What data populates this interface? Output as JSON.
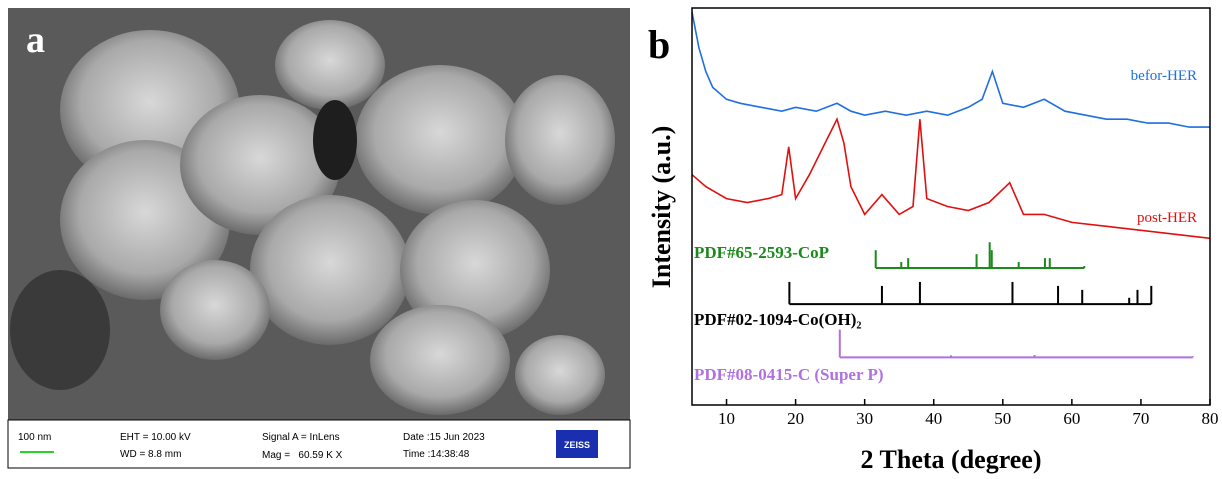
{
  "panel_a": {
    "label": "a",
    "scale_bar": "100 nm",
    "eht": "EHT = 10.00 kV",
    "wd": "WD = 8.8 mm",
    "signal": "Signal A = InLens",
    "mag": "Mag =   60.59 K X",
    "date": "Date :15 Jun 2023",
    "time": "Time :14:38:48",
    "logo": "ZEISS"
  },
  "chart_data": {
    "type": "xrd",
    "label": "b",
    "xlabel": "2 Theta (degree)",
    "ylabel": "Intensity (a.u.)",
    "xlim": [
      5,
      80
    ],
    "xticks": [
      10,
      20,
      30,
      40,
      50,
      60,
      70,
      80
    ],
    "ylim": [
      0,
      100
    ],
    "series": [
      {
        "name": "befor-HER",
        "color": "#1f6fe0",
        "kind": "line",
        "x": [
          5,
          6,
          7,
          8,
          10,
          12,
          15,
          18,
          20,
          23,
          26,
          28,
          30,
          33,
          36,
          39,
          42,
          45,
          47,
          48.5,
          50,
          53,
          56,
          59,
          62,
          65,
          68,
          71,
          74,
          77,
          80
        ],
        "values": [
          99,
          90,
          84,
          80,
          77,
          76,
          75,
          74,
          75,
          74,
          76,
          74,
          73,
          74,
          73,
          74,
          73,
          75,
          77,
          84,
          76,
          75,
          77,
          74,
          73,
          72,
          72,
          71,
          71,
          70,
          70
        ]
      },
      {
        "name": "post-HER",
        "color": "#e01010",
        "kind": "line",
        "x": [
          5,
          7,
          10,
          13,
          16,
          18,
          19,
          20,
          22,
          24,
          26,
          27,
          28,
          30,
          32.5,
          35,
          37,
          38,
          39,
          42,
          45,
          48,
          51,
          53,
          56,
          60,
          65,
          70,
          75,
          80
        ],
        "values": [
          58,
          55,
          52,
          51,
          52,
          53,
          65,
          52,
          58,
          65,
          72,
          66,
          55,
          48,
          53,
          48,
          50,
          72,
          52,
          50,
          49,
          51,
          56,
          48,
          48,
          46,
          45,
          44,
          43,
          42
        ]
      },
      {
        "name": "PDF#65-2593-CoP",
        "color": "#1a8a1a",
        "kind": "stick",
        "baseline": 34.5,
        "x": [
          31.6,
          35.3,
          36.3,
          46.2,
          48.1,
          48.4,
          52.3,
          56.1,
          56.8,
          61.8
        ],
        "values": [
          39,
          36,
          37,
          38,
          41,
          39,
          36,
          37,
          37,
          35
        ]
      },
      {
        "name": "PDF#02-1094-Co(OH)₂",
        "color": "#000000",
        "kind": "stick",
        "baseline": 25.4,
        "x": [
          19.1,
          32.5,
          38.0,
          51.4,
          58.0,
          61.5,
          68.3,
          69.5,
          71.5
        ],
        "values": [
          31,
          30,
          31,
          31,
          30,
          29,
          27,
          29,
          30
        ]
      },
      {
        "name": "PDF#08-0415-C (Super P)",
        "color": "#b070e0",
        "kind": "stick",
        "baseline": 12,
        "x": [
          26.4,
          42.5,
          54.6,
          77.5
        ],
        "values": [
          19,
          12.5,
          12.6,
          12.3
        ]
      }
    ]
  }
}
